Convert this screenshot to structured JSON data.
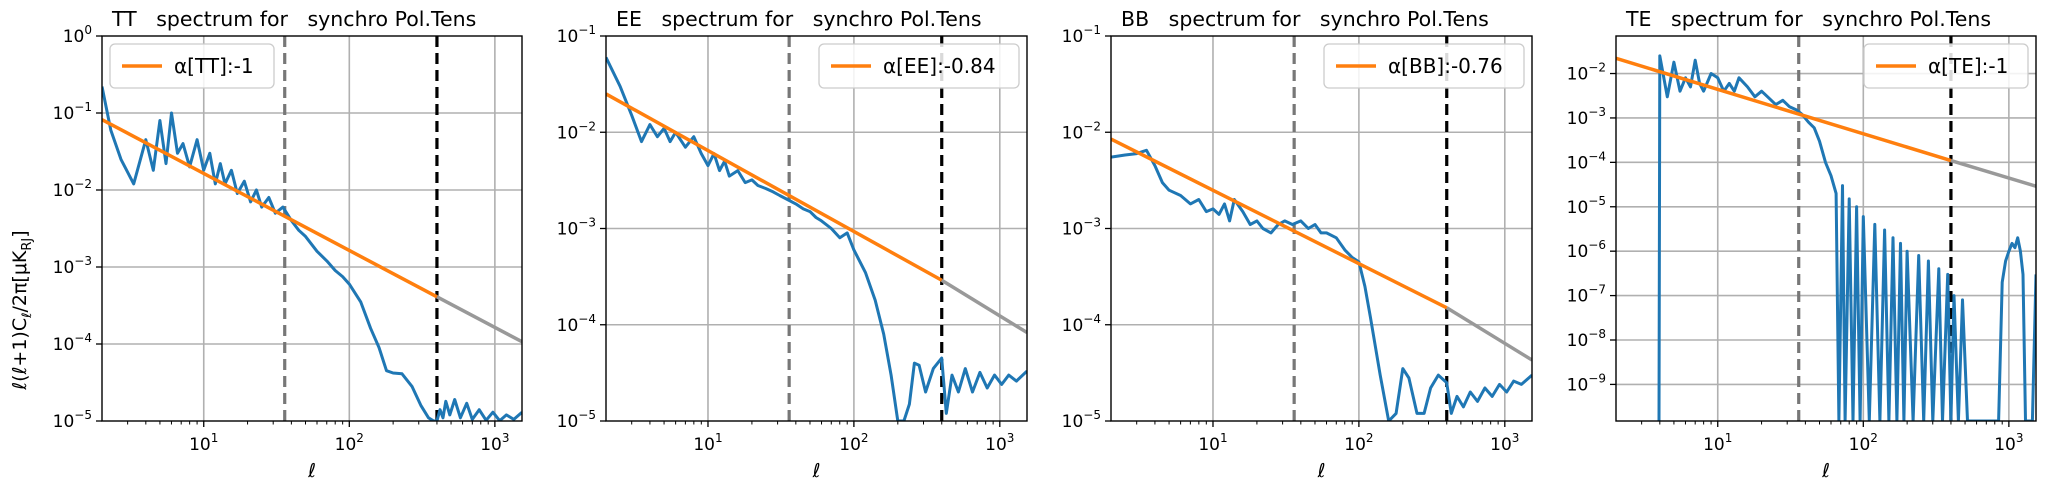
{
  "figure": {
    "ylabel": "ℓ(ℓ+1)C_ℓ/2π[μK_RJ]",
    "colors": {
      "spectrum": "#1f77b4",
      "fit": "#ff7f0e",
      "extrapolation": "#999999",
      "lmin_line": "#777777",
      "lmax_line": "#000000",
      "grid": "#b0b0b0"
    }
  },
  "chart_data": [
    {
      "type": "line",
      "title": "TT   spectrum for   synchro Pol.Tens",
      "xlabel": "ℓ",
      "xscale": "log",
      "yscale": "log",
      "xlim": [
        2,
        1536
      ],
      "ylim": [
        1e-05,
        1
      ],
      "xticks": [
        {
          "value": 10,
          "label": "10",
          "exp": "1"
        },
        {
          "value": 100,
          "label": "10",
          "exp": "2"
        },
        {
          "value": 1000,
          "label": "10",
          "exp": "3"
        }
      ],
      "yticks": [
        {
          "value": 1e-05,
          "label": "10",
          "exp": "−5"
        },
        {
          "value": 0.0001,
          "label": "10",
          "exp": "−4"
        },
        {
          "value": 0.001,
          "label": "10",
          "exp": "−3"
        },
        {
          "value": 0.01,
          "label": "10",
          "exp": "−2"
        },
        {
          "value": 0.1,
          "label": "10",
          "exp": "−1"
        },
        {
          "value": 1,
          "label": "10",
          "exp": "0"
        }
      ],
      "grid": true,
      "legend": {
        "position": "top-left",
        "label": "α[TT]:-1"
      },
      "vlines": [
        {
          "x": 36,
          "style": "dashed",
          "color": "gray"
        },
        {
          "x": 400,
          "style": "dashed",
          "color": "black"
        }
      ],
      "fit": {
        "x": [
          2,
          400
        ],
        "y": [
          0.082,
          0.00041
        ]
      },
      "extrapolation": {
        "x": [
          400,
          1536
        ],
        "y": [
          0.00041,
          0.000107
        ]
      },
      "series": [
        {
          "x": [
            2,
            2.3,
            2.7,
            3.3,
            4,
            4.5,
            5,
            5.5,
            6,
            6.6,
            7.2,
            8,
            9,
            10,
            11,
            12,
            13,
            14,
            15.5,
            17,
            19,
            21,
            23,
            25,
            28,
            31,
            35,
            40,
            45,
            50,
            60,
            70,
            80,
            90,
            100,
            120,
            140,
            160,
            180,
            200,
            230,
            270,
            310,
            350,
            380,
            400,
            420,
            440,
            460,
            490,
            530,
            580,
            640,
            700,
            780,
            870,
            970,
            1080,
            1200,
            1350,
            1536
          ],
          "y": [
            0.22,
            0.06,
            0.025,
            0.012,
            0.045,
            0.018,
            0.08,
            0.022,
            0.1,
            0.03,
            0.04,
            0.02,
            0.045,
            0.018,
            0.03,
            0.012,
            0.022,
            0.012,
            0.018,
            0.009,
            0.013,
            0.007,
            0.01,
            0.006,
            0.008,
            0.005,
            0.006,
            0.004,
            0.003,
            0.0025,
            0.0016,
            0.0012,
            0.0009,
            0.00075,
            0.0006,
            0.00035,
            0.00016,
            9e-05,
            4.5e-05,
            4.2e-05,
            4.1e-05,
            2.8e-05,
            1.6e-05,
            1.1e-05,
            8.5e-06,
            9.5e-06,
            1.4e-05,
            1.1e-05,
            1.8e-05,
            1.2e-05,
            1.9e-05,
            1.1e-05,
            1.7e-05,
            1.05e-05,
            1.4e-05,
            1.02e-05,
            1.3e-05,
            1.01e-05,
            1.2e-05,
            1.05e-05,
            1.3e-05
          ]
        }
      ]
    },
    {
      "type": "line",
      "title": "EE   spectrum for   synchro Pol.Tens",
      "xlabel": "ℓ",
      "xscale": "log",
      "yscale": "log",
      "xlim": [
        2,
        1536
      ],
      "ylim": [
        1e-05,
        0.1
      ],
      "xticks": [
        {
          "value": 10,
          "label": "10",
          "exp": "1"
        },
        {
          "value": 100,
          "label": "10",
          "exp": "2"
        },
        {
          "value": 1000,
          "label": "10",
          "exp": "3"
        }
      ],
      "yticks": [
        {
          "value": 1e-05,
          "label": "10",
          "exp": "−5"
        },
        {
          "value": 0.0001,
          "label": "10",
          "exp": "−4"
        },
        {
          "value": 0.001,
          "label": "10",
          "exp": "−3"
        },
        {
          "value": 0.01,
          "label": "10",
          "exp": "−2"
        },
        {
          "value": 0.1,
          "label": "10",
          "exp": "−1"
        }
      ],
      "grid": true,
      "legend": {
        "position": "top-right",
        "label": "α[EE]:-0.84"
      },
      "vlines": [
        {
          "x": 36,
          "style": "dashed",
          "color": "gray"
        },
        {
          "x": 400,
          "style": "dashed",
          "color": "black"
        }
      ],
      "fit": {
        "x": [
          2,
          400
        ],
        "y": [
          0.025,
          0.00029
        ]
      },
      "extrapolation": {
        "x": [
          400,
          1536
        ],
        "y": [
          0.00029,
          8.3e-05
        ]
      },
      "series": [
        {
          "x": [
            2,
            2.5,
            3,
            3.5,
            4,
            4.5,
            5,
            5.5,
            6,
            7,
            8,
            9,
            10,
            11,
            12,
            13,
            14,
            16,
            18,
            20,
            22,
            25,
            28,
            31,
            35,
            40,
            45,
            50,
            55,
            60,
            70,
            80,
            90,
            100,
            120,
            140,
            160,
            180,
            200,
            220,
            240,
            260,
            280,
            310,
            350,
            400,
            430,
            470,
            520,
            580,
            650,
            730,
            820,
            920,
            1030,
            1150,
            1300,
            1536
          ],
          "y": [
            0.06,
            0.03,
            0.015,
            0.008,
            0.012,
            0.009,
            0.011,
            0.008,
            0.01,
            0.007,
            0.009,
            0.006,
            0.0045,
            0.006,
            0.004,
            0.005,
            0.0035,
            0.004,
            0.003,
            0.0032,
            0.0028,
            0.0026,
            0.0024,
            0.0022,
            0.002,
            0.0018,
            0.0016,
            0.0015,
            0.0013,
            0.0012,
            0.001,
            0.0008,
            0.0009,
            0.0006,
            0.00035,
            0.00018,
            8e-05,
            3e-05,
            1e-05,
            7e-06,
            1.5e-05,
            4e-05,
            3.8e-05,
            2e-05,
            3.5e-05,
            4.5e-05,
            1.2e-05,
            3e-05,
            2e-05,
            3.5e-05,
            2e-05,
            3.2e-05,
            2.2e-05,
            3e-05,
            2.4e-05,
            3e-05,
            2.6e-05,
            3.3e-05
          ]
        }
      ]
    },
    {
      "type": "line",
      "title": "BB   spectrum for   synchro Pol.Tens",
      "xlabel": "ℓ",
      "xscale": "log",
      "yscale": "log",
      "xlim": [
        2,
        1536
      ],
      "ylim": [
        1e-05,
        0.1
      ],
      "xticks": [
        {
          "value": 10,
          "label": "10",
          "exp": "1"
        },
        {
          "value": 100,
          "label": "10",
          "exp": "2"
        },
        {
          "value": 1000,
          "label": "10",
          "exp": "3"
        }
      ],
      "yticks": [
        {
          "value": 1e-05,
          "label": "10",
          "exp": "−5"
        },
        {
          "value": 0.0001,
          "label": "10",
          "exp": "−4"
        },
        {
          "value": 0.001,
          "label": "10",
          "exp": "−3"
        },
        {
          "value": 0.01,
          "label": "10",
          "exp": "−2"
        },
        {
          "value": 0.1,
          "label": "10",
          "exp": "−1"
        }
      ],
      "grid": true,
      "legend": {
        "position": "top-right",
        "label": "α[BB]:-0.76"
      },
      "vlines": [
        {
          "x": 36,
          "style": "dashed",
          "color": "gray"
        },
        {
          "x": 400,
          "style": "dashed",
          "color": "black"
        }
      ],
      "fit": {
        "x": [
          2,
          400
        ],
        "y": [
          0.0085,
          0.00015
        ]
      },
      "extrapolation": {
        "x": [
          400,
          1536
        ],
        "y": [
          0.00015,
          4.3e-05
        ]
      },
      "series": [
        {
          "x": [
            2,
            2.5,
            3,
            3.5,
            4,
            4.5,
            5,
            6,
            7,
            8,
            9,
            10,
            11,
            12,
            13,
            14,
            16,
            18,
            20,
            22,
            25,
            28,
            31,
            35,
            40,
            45,
            50,
            55,
            60,
            70,
            80,
            90,
            100,
            110,
            120,
            140,
            160,
            180,
            200,
            220,
            250,
            280,
            310,
            350,
            400,
            430,
            470,
            520,
            580,
            650,
            730,
            820,
            920,
            1030,
            1150,
            1300,
            1536
          ],
          "y": [
            0.0055,
            0.0058,
            0.006,
            0.0065,
            0.0045,
            0.003,
            0.0025,
            0.0022,
            0.0018,
            0.002,
            0.0015,
            0.0016,
            0.0014,
            0.0018,
            0.0012,
            0.002,
            0.0015,
            0.0011,
            0.0012,
            0.001,
            0.0009,
            0.0011,
            0.0012,
            0.0011,
            0.0012,
            0.001,
            0.0011,
            0.0009,
            0.0009,
            0.0008,
            0.0006,
            0.0005,
            0.00045,
            0.00025,
            0.00012,
            3e-05,
            1e-05,
            1.2e-05,
            3.5e-05,
            2.8e-05,
            1.2e-05,
            1.2e-05,
            2.2e-05,
            3e-05,
            2.5e-05,
            1.2e-05,
            1.8e-05,
            1.4e-05,
            2e-05,
            1.6e-05,
            2.2e-05,
            1.8e-05,
            2.4e-05,
            2e-05,
            2.6e-05,
            2.4e-05,
            3e-05
          ]
        }
      ]
    },
    {
      "type": "line",
      "title": "TE   spectrum for   synchro Pol.Tens",
      "xlabel": "ℓ",
      "xscale": "log",
      "yscale": "log",
      "xlim": [
        2,
        1536
      ],
      "ylim": [
        1.5e-10,
        0.07
      ],
      "xticks": [
        {
          "value": 10,
          "label": "10",
          "exp": "1"
        },
        {
          "value": 100,
          "label": "10",
          "exp": "2"
        },
        {
          "value": 1000,
          "label": "10",
          "exp": "3"
        }
      ],
      "yticks": [
        {
          "value": 1e-09,
          "label": "10",
          "exp": "−9"
        },
        {
          "value": 1e-08,
          "label": "10",
          "exp": "−8"
        },
        {
          "value": 1e-07,
          "label": "10",
          "exp": "−7"
        },
        {
          "value": 1e-06,
          "label": "10",
          "exp": "−6"
        },
        {
          "value": 1e-05,
          "label": "10",
          "exp": "−5"
        },
        {
          "value": 0.0001,
          "label": "10",
          "exp": "−4"
        },
        {
          "value": 0.001,
          "label": "10",
          "exp": "−3"
        },
        {
          "value": 0.01,
          "label": "10",
          "exp": "−2"
        }
      ],
      "grid": true,
      "legend": {
        "position": "top-right",
        "label": "α[TE]:-1"
      },
      "vlines": [
        {
          "x": 36,
          "style": "dashed",
          "color": "gray"
        },
        {
          "x": 400,
          "style": "dashed",
          "color": "black"
        }
      ],
      "fit": {
        "x": [
          2,
          400
        ],
        "y": [
          0.022,
          0.00011
        ]
      },
      "extrapolation": {
        "x": [
          400,
          1536
        ],
        "y": [
          0.00011,
          2.9e-05
        ]
      },
      "series": [
        {
          "x": [
            3.95,
            4,
            4.5,
            5,
            5.5,
            6,
            6.5,
            7,
            7.5,
            8,
            9,
            10,
            11,
            12,
            13,
            14,
            16,
            18,
            20,
            22,
            25,
            28,
            31,
            35,
            38,
            42,
            46,
            50,
            55,
            60,
            65,
            68,
            72,
            75,
            80,
            85,
            90,
            95,
            100,
            110,
            120,
            130,
            140,
            150,
            160,
            170,
            180,
            190,
            200,
            220,
            240,
            260,
            280,
            300,
            330,
            350,
            380,
            400,
            420,
            450,
            480,
            520,
            560,
            600,
            650,
            700,
            750,
            800,
            850,
            900,
            950,
            1000,
            1050,
            1100,
            1150,
            1200,
            1250,
            1300,
            1350,
            1400,
            1450,
            1536
          ],
          "y": [
            1.5e-10,
            0.025,
            0.003,
            0.018,
            0.004,
            0.008,
            0.005,
            0.02,
            0.006,
            0.004,
            0.01,
            0.008,
            0.004,
            0.006,
            0.004,
            0.008,
            0.005,
            0.003,
            0.004,
            0.003,
            0.002,
            0.0025,
            0.0018,
            0.0015,
            0.0012,
            0.0008,
            0.0006,
            0.0003,
            0.0001,
            5e-05,
            2e-05,
            1.5e-10,
            3e-05,
            1.5e-10,
            1.5e-05,
            1.5e-10,
            1e-05,
            1.5e-10,
            6e-06,
            1.5e-10,
            4e-06,
            1.5e-10,
            3e-06,
            1.5e-10,
            2e-06,
            1.5e-10,
            1.5e-06,
            1.5e-10,
            1e-06,
            1.5e-10,
            8e-07,
            1.5e-10,
            6e-07,
            1.5e-10,
            4e-07,
            1.5e-10,
            3e-07,
            1.5e-10,
            1e-07,
            1.5e-10,
            8e-08,
            1.5e-10,
            1.5e-10,
            1.5e-10,
            1.5e-10,
            1.5e-10,
            1.5e-10,
            1.5e-10,
            1.5e-10,
            2e-07,
            6e-07,
            1e-06,
            1.5e-06,
            1.2e-06,
            2e-06,
            1e-06,
            3e-07,
            1.5e-10,
            1.5e-10,
            1.5e-10,
            1.5e-10,
            3e-07
          ]
        }
      ]
    }
  ]
}
